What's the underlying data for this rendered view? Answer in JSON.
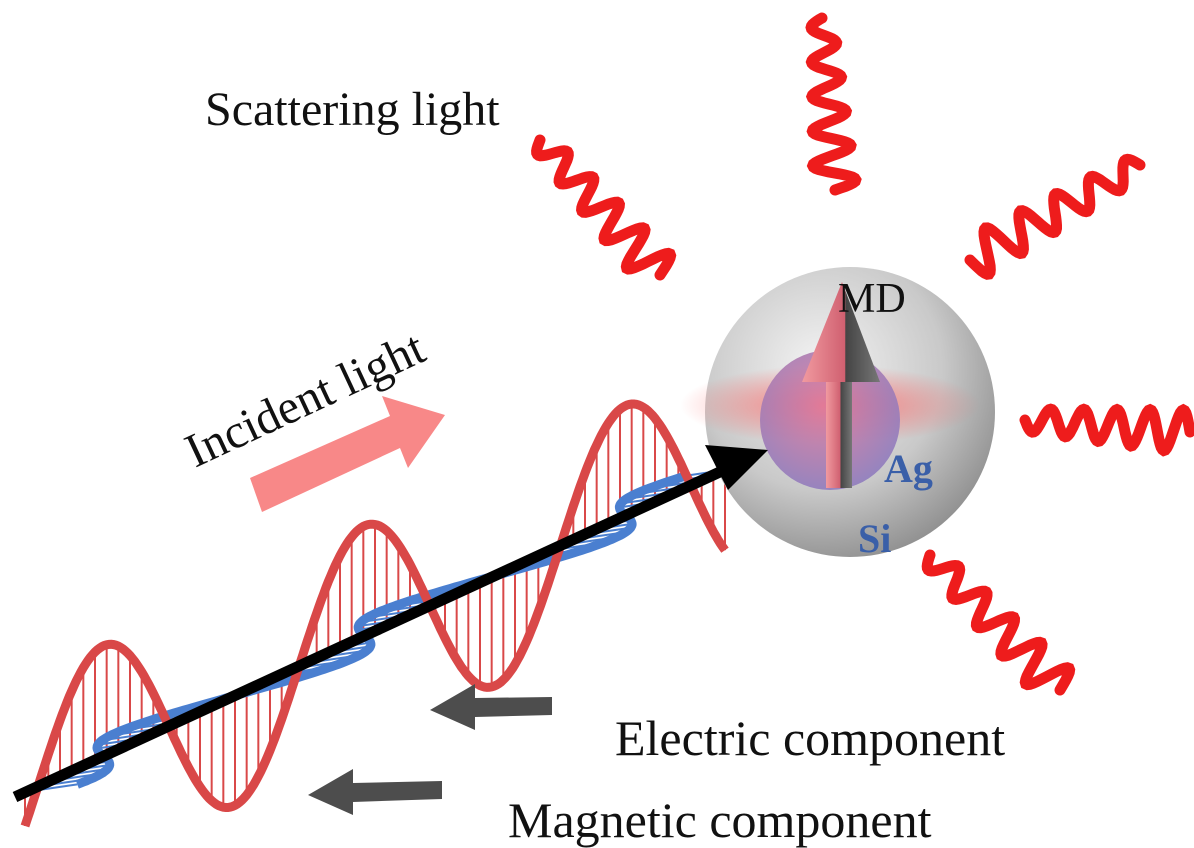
{
  "labels": {
    "scattering": "Scattering light",
    "incident": "Incident light",
    "md": "MD",
    "ag": "Ag",
    "si": "Si",
    "electric": "Electric component",
    "magnetic": "Magnetic component"
  }
}
